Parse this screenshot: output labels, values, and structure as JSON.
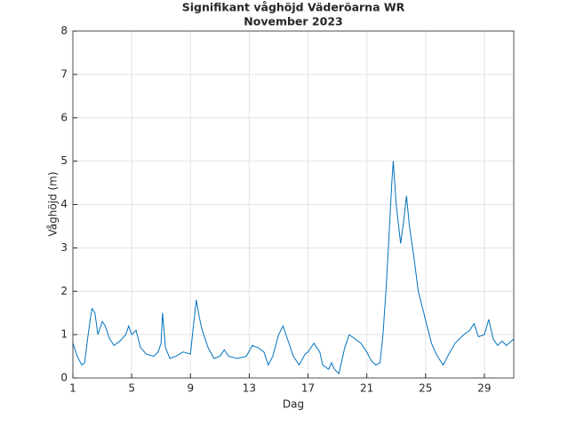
{
  "chart_data": {
    "type": "line",
    "title": "Signifikant våghöjd Väderöarna WR",
    "subtitle": "November 2023",
    "xlabel": "Dag",
    "ylabel": "Våghöjd (m)",
    "xlim": [
      1,
      31
    ],
    "xticks": [
      1,
      5,
      9,
      13,
      17,
      21,
      25,
      29
    ],
    "ylim": [
      0,
      8
    ],
    "yticks": [
      0,
      1,
      2,
      3,
      4,
      5,
      6,
      7,
      8
    ],
    "grid": true,
    "series": [
      {
        "name": "Våghöjd",
        "color": "#0072bd",
        "x": [
          1,
          1.3,
          1.6,
          1.8,
          2.0,
          2.2,
          2.3,
          2.5,
          2.7,
          3.0,
          3.2,
          3.5,
          3.8,
          4.2,
          4.6,
          4.8,
          5.0,
          5.3,
          5.6,
          6.0,
          6.5,
          6.8,
          7.0,
          7.1,
          7.3,
          7.6,
          8.0,
          8.5,
          9.0,
          9.2,
          9.4,
          9.6,
          9.8,
          10.2,
          10.6,
          11,
          11.3,
          11.6,
          12.2,
          12.8,
          13.2,
          13.6,
          14,
          14.3,
          14.6,
          15,
          15.3,
          15.6,
          16,
          16.4,
          16.8,
          17,
          17.4,
          17.8,
          18,
          18.4,
          18.6,
          18.8,
          19.1,
          19.5,
          19.8,
          20.2,
          20.6,
          21,
          21.3,
          21.6,
          21.9,
          22.1,
          22.3,
          22.5,
          22.7,
          22.8,
          23.0,
          23.3,
          23.5,
          23.7,
          23.9,
          24.2,
          24.5,
          24.8,
          25.1,
          25.4,
          25.8,
          26.2,
          26.5,
          27.0,
          27.6,
          28.0,
          28.3,
          28.6,
          29.0,
          29.3,
          29.6,
          29.9,
          30.2,
          30.5,
          31
        ],
        "values": [
          0.8,
          0.5,
          0.3,
          0.35,
          0.9,
          1.4,
          1.6,
          1.5,
          1.0,
          1.3,
          1.2,
          0.9,
          0.75,
          0.85,
          1.0,
          1.2,
          1.0,
          1.1,
          0.7,
          0.55,
          0.5,
          0.6,
          0.8,
          1.5,
          0.7,
          0.45,
          0.5,
          0.6,
          0.55,
          1.2,
          1.8,
          1.4,
          1.1,
          0.7,
          0.45,
          0.5,
          0.65,
          0.5,
          0.45,
          0.5,
          0.75,
          0.7,
          0.6,
          0.3,
          0.5,
          1.0,
          1.2,
          0.9,
          0.5,
          0.3,
          0.55,
          0.6,
          0.8,
          0.6,
          0.3,
          0.2,
          0.35,
          0.2,
          0.1,
          0.7,
          1.0,
          0.9,
          0.8,
          0.6,
          0.4,
          0.3,
          0.35,
          1.0,
          2.0,
          3.2,
          4.5,
          5.0,
          4.0,
          3.1,
          3.6,
          4.2,
          3.5,
          2.8,
          2.0,
          1.6,
          1.2,
          0.8,
          0.5,
          0.3,
          0.5,
          0.8,
          1.0,
          1.1,
          1.25,
          0.95,
          1.0,
          1.35,
          0.9,
          0.75,
          0.85,
          0.75,
          0.9
        ]
      }
    ]
  }
}
